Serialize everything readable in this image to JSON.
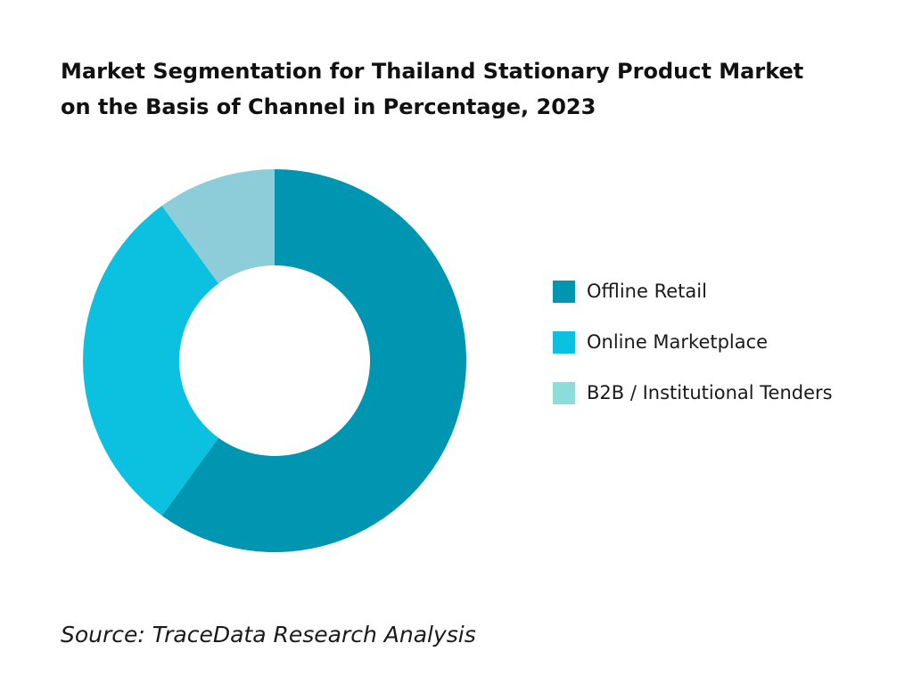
{
  "title_line1": "Market Segmentation for Thailand Stationary Product Market",
  "title_line2": "on the Basis of Channel in Percentage, 2023",
  "source": "Source: TraceData Research Analysis",
  "chart_data": {
    "type": "pie",
    "variant": "donut",
    "title": "Market Segmentation for Thailand Stationary Product Market on the Basis of Channel in Percentage, 2023",
    "categories": [
      "Offline Retail",
      "Online Marketplace",
      "B2B / Institutional Tenders"
    ],
    "values": [
      60,
      30,
      10
    ],
    "colors": [
      "#0096B1",
      "#0CC0DF",
      "#8CCDD9"
    ],
    "legend_colors": [
      "#0096B1",
      "#0CC0DF",
      "#8DDCDC"
    ],
    "legend_position": "right",
    "start_angle_deg": 0,
    "direction": "clockwise"
  }
}
